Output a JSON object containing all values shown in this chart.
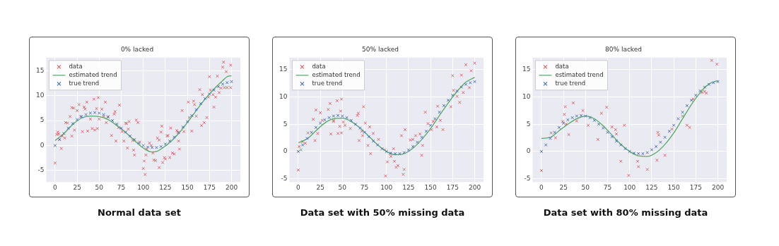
{
  "chart_data": [
    {
      "type": "scatter",
      "title": "0% lacked",
      "xlim": [
        -10,
        210
      ],
      "xticks": [
        0,
        25,
        50,
        75,
        100,
        125,
        150,
        175,
        200
      ],
      "ylim": [
        -7.3,
        17.6
      ],
      "yticks": [
        -5,
        0,
        5,
        10,
        15
      ],
      "grid": true,
      "legend": "top left",
      "annotations": [
        "Normal data set"
      ],
      "series": [
        {
          "name": "data",
          "marker": "cross",
          "color": "#d9666a",
          "x": [
            0,
            2,
            3,
            4,
            7,
            5,
            8,
            11,
            12,
            14,
            17,
            19,
            19,
            21,
            22,
            25,
            27,
            29,
            31,
            33,
            34,
            36,
            37,
            40,
            42,
            44,
            45,
            47,
            48,
            49,
            50,
            53,
            55,
            57,
            58,
            60,
            64,
            67,
            68,
            69,
            72,
            73,
            76,
            78,
            80,
            81,
            82,
            83,
            84,
            88,
            89,
            90,
            92,
            94,
            96,
            100,
            101,
            102,
            103,
            104,
            107,
            109,
            111,
            112,
            114,
            116,
            118,
            118,
            120,
            121,
            122,
            124,
            125,
            127,
            128,
            130,
            131,
            133,
            135,
            138,
            139,
            140,
            141,
            144,
            146,
            151,
            152,
            155,
            157,
            158,
            160,
            164,
            166,
            167,
            169,
            172,
            174,
            175,
            176,
            179,
            180,
            182,
            184,
            186,
            188,
            190,
            191,
            192,
            194,
            195,
            199,
            199
          ],
          "values": [
            -3.5,
            2.2,
            2.7,
            2.3,
            -0.6,
            1.2,
            1.9,
            1.5,
            4.6,
            4.5,
            5.8,
            1.9,
            7.6,
            7.5,
            3.1,
            7.0,
            8.2,
            5.8,
            2.8,
            7.7,
            7.3,
            8.7,
            2.9,
            5.3,
            3.4,
            9.3,
            3.1,
            7.4,
            3.4,
            9.6,
            5.3,
            7.3,
            5.9,
            8.7,
            4.6,
            5.8,
            2.0,
            6.3,
            6.8,
            0.9,
            3.6,
            8.1,
            2.8,
            0.9,
            4.5,
            4.4,
            -0.5,
            3.3,
            4.8,
            1.0,
            -0.9,
            -1.9,
            5.1,
            4.6,
            0.7,
            -4.6,
            -3.1,
            -5.8,
            -1.9,
            -0.7,
            0.5,
            0.0,
            -1.5,
            -2.9,
            -3.0,
            1.5,
            1.1,
            -4.4,
            2.7,
            3.9,
            -3.4,
            -2.4,
            -2.7,
            1.9,
            2.0,
            -2.4,
            3.5,
            -1.5,
            -1.7,
            3.0,
            2.7,
            0.9,
            -0.7,
            7.0,
            2.8,
            8.7,
            5.6,
            2.9,
            8.9,
            8.2,
            5.9,
            11.2,
            4.0,
            10.2,
            4.6,
            5.6,
            9.7,
            13.8,
            11.1,
            10.2,
            7.7,
            9.7,
            13.9,
            10.6,
            11.5,
            15.7,
            16.7,
            11.6,
            14.8,
            11.6,
            11.6,
            16.1
          ]
        },
        {
          "name": "estimated trend",
          "type": "line",
          "color": "#55a868",
          "x": [
            0,
            10,
            20,
            30,
            40,
            50,
            60,
            70,
            80,
            90,
            100,
            110,
            115,
            120,
            130,
            140,
            150,
            160,
            170,
            180,
            190,
            195,
            200
          ],
          "values": [
            1.0,
            2.4,
            4.2,
            5.5,
            5.9,
            5.8,
            5.2,
            4.0,
            2.6,
            1.0,
            -0.5,
            -1.3,
            -1.2,
            -0.7,
            0.6,
            2.4,
            4.6,
            7.0,
            9.3,
            11.3,
            13.0,
            13.8,
            14.0
          ]
        },
        {
          "name": "true trend",
          "marker": "cross",
          "color": "#4c72b0",
          "x": [
            0,
            5,
            10,
            15,
            20,
            25,
            30,
            35,
            40,
            45,
            50,
            55,
            60,
            65,
            70,
            75,
            80,
            85,
            90,
            95,
            100,
            105,
            110,
            115,
            120,
            125,
            130,
            135,
            140,
            145,
            150,
            155,
            160,
            165,
            170,
            175,
            180,
            185,
            190,
            195,
            200
          ],
          "values": [
            0,
            1.2,
            2.4,
            3.5,
            4.4,
            5.2,
            5.8,
            6.2,
            6.5,
            6.6,
            6.5,
            6.2,
            5.7,
            5.0,
            4.3,
            3.5,
            2.7,
            1.9,
            1.2,
            0.5,
            0.0,
            -0.3,
            -0.4,
            -0.4,
            -0.2,
            0.3,
            0.9,
            1.7,
            2.6,
            3.7,
            4.8,
            6.0,
            7.2,
            8.4,
            9.4,
            10.3,
            11.1,
            11.8,
            12.3,
            12.6,
            12.8
          ]
        }
      ]
    },
    {
      "type": "scatter",
      "title": "50% lacked",
      "xlim": [
        -10,
        210
      ],
      "xticks": [
        0,
        25,
        50,
        75,
        100,
        125,
        150,
        175,
        200
      ],
      "ylim": [
        -5.6,
        17.2
      ],
      "yticks": [
        -5,
        0,
        5,
        10,
        15
      ],
      "grid": true,
      "legend": "top left",
      "annotations": [
        "Data set with 50% missing data"
      ],
      "series": [
        {
          "name": "data",
          "marker": "cross",
          "color": "#d9666a",
          "x": [
            0,
            1,
            3,
            5,
            8,
            11,
            17,
            19,
            20,
            22,
            25,
            27,
            34,
            36,
            37,
            40,
            40,
            44,
            45,
            47,
            48,
            49,
            49,
            51,
            53,
            59,
            67,
            68,
            69,
            72,
            73,
            74,
            76,
            79,
            81,
            82,
            85,
            91,
            98,
            99,
            101,
            104,
            105,
            108,
            109,
            111,
            113,
            117,
            119,
            120,
            121,
            127,
            130,
            133,
            138,
            140,
            141,
            144,
            147,
            151,
            153,
            157,
            158,
            161,
            164,
            173,
            175,
            176,
            180,
            183,
            185,
            187,
            190,
            194,
            196,
            200
          ],
          "values": [
            -3.4,
            0.9,
            0.3,
            1.8,
            1.5,
            3.4,
            5.9,
            2.0,
            7.6,
            3.3,
            7.1,
            5.7,
            7.7,
            8.8,
            3.2,
            5.7,
            5.5,
            9.3,
            3.3,
            4.6,
            7.4,
            3.4,
            9.6,
            5.4,
            4.8,
            4.2,
            6.6,
            7.0,
            2.0,
            3.7,
            2.9,
            8.2,
            5.2,
            1.1,
            4.5,
            -0.4,
            3.3,
            2.2,
            0.3,
            -4.5,
            -1.9,
            -0.4,
            -0.9,
            0.5,
            -1.8,
            -2.9,
            -2.6,
            2.9,
            -4.2,
            -3.3,
            4.0,
            2.1,
            2.2,
            2.9,
            3.2,
            -0.7,
            1.1,
            7.2,
            5.1,
            4.0,
            5.5,
            4.5,
            8.3,
            5.7,
            4.0,
            8.2,
            13.9,
            11.2,
            10.1,
            9.0,
            14.0,
            10.8,
            15.9,
            11.7,
            14.8,
            16.2
          ]
        },
        {
          "name": "estimated trend",
          "type": "line",
          "color": "#55a868",
          "x": [
            0,
            10,
            20,
            30,
            40,
            50,
            60,
            70,
            80,
            90,
            100,
            110,
            120,
            130,
            140,
            150,
            160,
            170,
            180,
            190,
            200
          ],
          "values": [
            1.6,
            2.3,
            3.8,
            5.2,
            6.0,
            6.1,
            5.5,
            4.3,
            2.8,
            1.2,
            0.0,
            -0.6,
            -0.4,
            0.6,
            2.2,
            4.2,
            6.6,
            8.9,
            11.0,
            12.7,
            13.6
          ]
        },
        {
          "name": "true trend",
          "marker": "cross",
          "color": "#4c72b0",
          "x": [
            0,
            5,
            10,
            15,
            20,
            25,
            30,
            35,
            40,
            45,
            50,
            55,
            60,
            65,
            70,
            75,
            80,
            85,
            90,
            95,
            100,
            105,
            110,
            115,
            120,
            125,
            130,
            135,
            140,
            145,
            150,
            155,
            160,
            165,
            170,
            175,
            180,
            185,
            190,
            195,
            200
          ],
          "values": [
            0,
            1.2,
            2.4,
            3.5,
            4.4,
            5.2,
            5.8,
            6.2,
            6.5,
            6.6,
            6.5,
            6.2,
            5.7,
            5.0,
            4.3,
            3.5,
            2.7,
            1.9,
            1.2,
            0.5,
            0.0,
            -0.3,
            -0.4,
            -0.4,
            -0.2,
            0.3,
            0.9,
            1.7,
            2.6,
            3.7,
            4.8,
            6.0,
            7.2,
            8.4,
            9.4,
            10.3,
            11.1,
            11.8,
            12.3,
            12.6,
            12.8
          ]
        }
      ]
    },
    {
      "type": "scatter",
      "title": "80% lacked",
      "xlim": [
        -10,
        210
      ],
      "xticks": [
        0,
        25,
        50,
        75,
        100,
        125,
        150,
        175,
        200
      ],
      "ylim": [
        -5.6,
        17.2
      ],
      "yticks": [
        -5,
        0,
        5,
        10,
        15
      ],
      "grid": true,
      "legend": "top left",
      "annotations": [
        "Data set with 80% missing data"
      ],
      "series": [
        {
          "name": "data",
          "marker": "cross",
          "color": "#d9666a",
          "x": [
            0,
            11,
            16,
            24,
            26,
            27,
            28,
            31,
            36,
            40,
            47,
            53,
            64,
            68,
            74,
            80,
            84,
            85,
            90,
            94,
            99,
            109,
            110,
            120,
            131,
            132,
            133,
            140,
            148,
            160,
            165,
            168,
            172,
            182,
            185,
            187,
            193,
            199
          ],
          "values": [
            -3.5,
            3.4,
            2.5,
            5.5,
            6.8,
            8.2,
            5.0,
            3.1,
            8.9,
            5.6,
            7.5,
            4.8,
            2.2,
            7.0,
            8.1,
            4.5,
            4.0,
            3.2,
            -1.8,
            4.8,
            -4.4,
            -1.8,
            -2.8,
            -3.3,
            -1.6,
            3.5,
            3.0,
            -0.7,
            4.1,
            6.5,
            4.8,
            4.4,
            9.6,
            10.8,
            11.0,
            10.7,
            16.7,
            16.0
          ]
        },
        {
          "name": "estimated trend",
          "type": "line",
          "color": "#55a868",
          "x": [
            0,
            10,
            20,
            30,
            40,
            50,
            60,
            70,
            80,
            90,
            100,
            110,
            120,
            130,
            140,
            150,
            160,
            170,
            180,
            190,
            200
          ],
          "values": [
            2.4,
            2.6,
            3.8,
            5.0,
            6.0,
            6.5,
            6.0,
            4.7,
            3.0,
            1.3,
            0.0,
            -0.8,
            -0.9,
            -0.2,
            1.3,
            3.4,
            6.0,
            8.6,
            10.8,
            12.4,
            13.0
          ]
        },
        {
          "name": "true trend",
          "marker": "cross",
          "color": "#4c72b0",
          "x": [
            0,
            5,
            10,
            15,
            20,
            25,
            30,
            35,
            40,
            45,
            50,
            55,
            60,
            65,
            70,
            75,
            80,
            85,
            90,
            95,
            100,
            105,
            110,
            115,
            120,
            125,
            130,
            135,
            140,
            145,
            150,
            155,
            160,
            165,
            170,
            175,
            180,
            185,
            190,
            195,
            200
          ],
          "values": [
            0,
            1.2,
            2.4,
            3.5,
            4.4,
            5.2,
            5.8,
            6.2,
            6.5,
            6.6,
            6.5,
            6.2,
            5.7,
            5.0,
            4.3,
            3.5,
            2.7,
            1.9,
            1.2,
            0.5,
            0.0,
            -0.3,
            -0.4,
            -0.4,
            -0.2,
            0.3,
            0.9,
            1.7,
            2.6,
            3.7,
            4.8,
            6.0,
            7.2,
            8.4,
            9.4,
            10.3,
            11.1,
            11.8,
            12.3,
            12.6,
            12.8
          ]
        }
      ]
    }
  ]
}
